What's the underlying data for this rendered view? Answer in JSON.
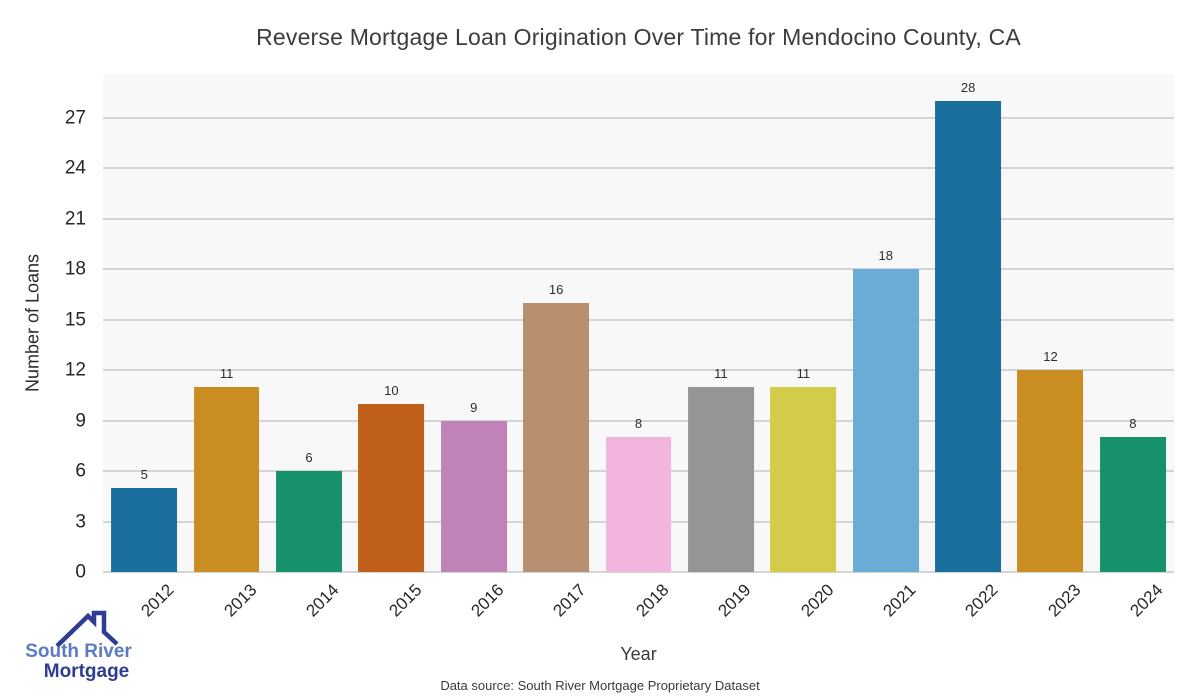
{
  "title": "Reverse Mortgage Loan Origination Over Time for Mendocino County, CA",
  "footer": "Data source: South River Mortgage Proprietary Dataset",
  "logo": {
    "line1": "South River",
    "line2": "Mortgage",
    "color1": "#5b7cc0",
    "color2": "#2e3d91"
  },
  "chart_data": {
    "type": "bar",
    "title": "Reverse Mortgage Loan Origination Over Time for Mendocino County, CA",
    "xlabel": "Year",
    "ylabel": "Number of Loans",
    "categories": [
      "2012",
      "2013",
      "2014",
      "2015",
      "2016",
      "2017",
      "2018",
      "2019",
      "2020",
      "2021",
      "2022",
      "2023",
      "2024"
    ],
    "values": [
      5,
      11,
      6,
      10,
      9,
      16,
      8,
      11,
      11,
      18,
      28,
      12,
      8
    ],
    "bar_colors": [
      "#1b6f9f",
      "#ca8d21",
      "#17906c",
      "#c05f1a",
      "#c083b8",
      "#b9906f",
      "#f2b6de",
      "#959595",
      "#d2cc4a",
      "#69acd6",
      "#1b6f9f",
      "#ca8d21",
      "#17906c"
    ],
    "value_labels_shown": true,
    "yticks": [
      0,
      3,
      6,
      9,
      12,
      15,
      18,
      21,
      24,
      27
    ],
    "ylim": [
      0,
      29.6
    ],
    "grid": true,
    "legend": "none",
    "plot_bg": "#f8f8f8",
    "grid_color": "#d4d4d4"
  }
}
